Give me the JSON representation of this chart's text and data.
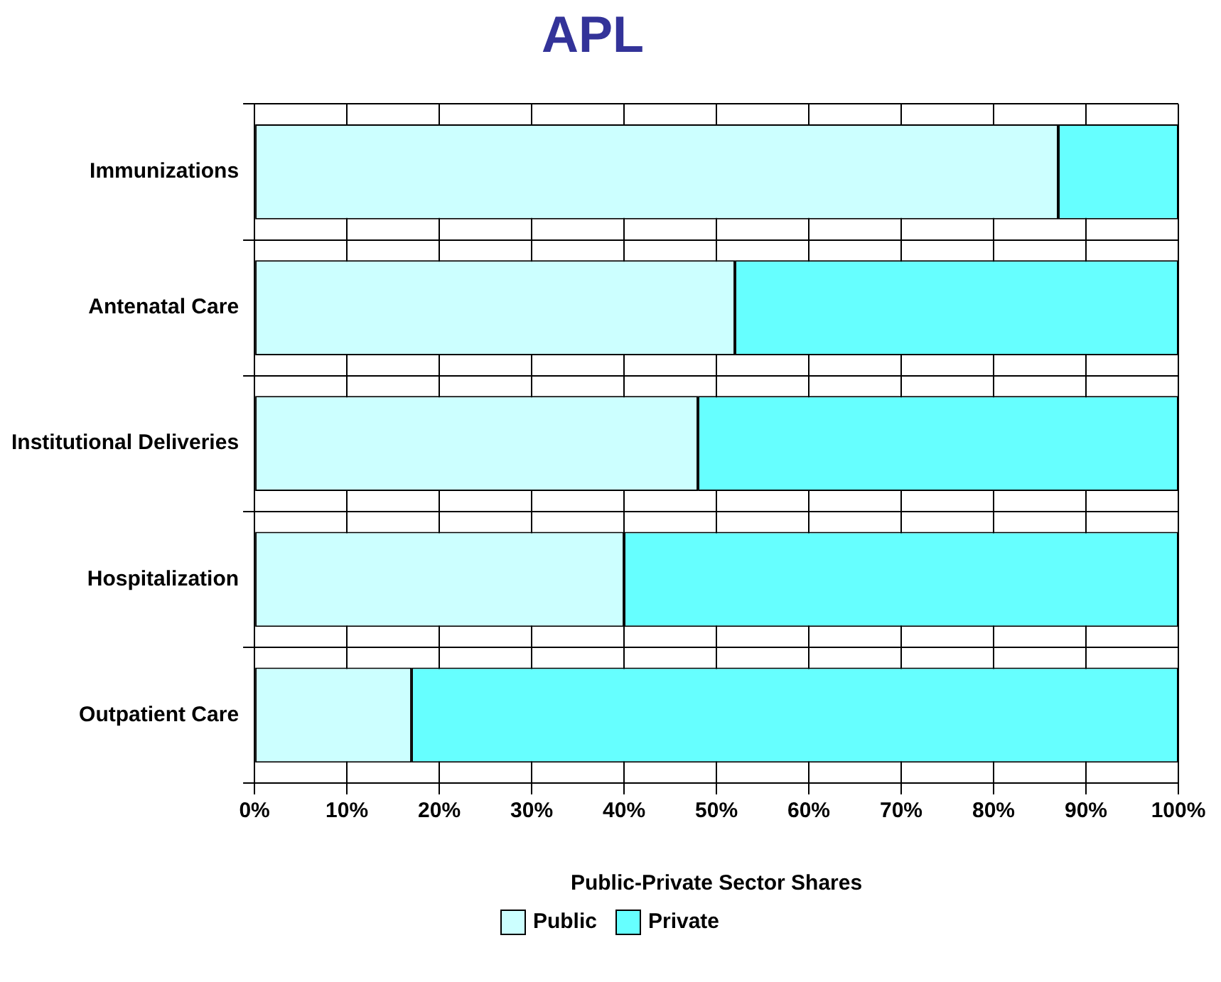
{
  "chart_data": {
    "type": "bar",
    "orientation": "horizontal",
    "stacked": true,
    "title": "APL",
    "xlabel": "Public-Private Sector Shares",
    "categories": [
      "Immunizations",
      "Antenatal Care",
      "Institutional Deliveries",
      "Hospitalization",
      "Outpatient Care"
    ],
    "series": [
      {
        "name": "Public",
        "color": "#ccffff",
        "values": [
          87,
          52,
          48,
          40,
          17
        ]
      },
      {
        "name": "Private",
        "color": "#66ffff",
        "values": [
          13,
          48,
          52,
          60,
          83
        ]
      }
    ],
    "xlim": [
      0,
      100
    ],
    "xticks": [
      {
        "value": 0,
        "label": "0%"
      },
      {
        "value": 10,
        "label": "10%"
      },
      {
        "value": 20,
        "label": "20%"
      },
      {
        "value": 30,
        "label": "30%"
      },
      {
        "value": 40,
        "label": "40%"
      },
      {
        "value": 50,
        "label": "50%"
      },
      {
        "value": 60,
        "label": "60%"
      },
      {
        "value": 70,
        "label": "70%"
      },
      {
        "value": 80,
        "label": "80%"
      },
      {
        "value": 90,
        "label": "90%"
      },
      {
        "value": 100,
        "label": "100%"
      }
    ],
    "grid": true,
    "legend": "bottom"
  }
}
